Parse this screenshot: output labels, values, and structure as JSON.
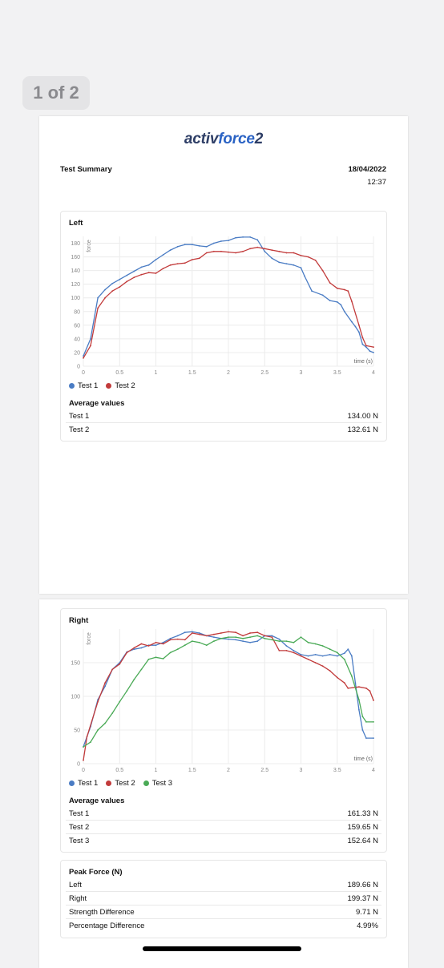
{
  "page_indicator": "1 of 2",
  "logo": {
    "part1": "activ",
    "part2": "force",
    "part3": "2"
  },
  "summary": {
    "title": "Test Summary",
    "date": "18/04/2022",
    "time": "12:37"
  },
  "left": {
    "title": "Left",
    "avg_title": "Average values",
    "averages": [
      {
        "label": "Test 1",
        "value": "134.00 N"
      },
      {
        "label": "Test 2",
        "value": "132.61 N"
      }
    ]
  },
  "right": {
    "title": "Right",
    "avg_title": "Average values",
    "averages": [
      {
        "label": "Test 1",
        "value": "161.33 N"
      },
      {
        "label": "Test 2",
        "value": "159.65 N"
      },
      {
        "label": "Test 3",
        "value": "152.64 N"
      }
    ]
  },
  "peak": {
    "title": "Peak Force (N)",
    "rows": [
      {
        "label": "Left",
        "value": "189.66 N"
      },
      {
        "label": "Right",
        "value": "199.37 N"
      },
      {
        "label": "Strength Difference",
        "value": "9.71 N"
      },
      {
        "label": "Percentage Difference",
        "value": "4.99%"
      }
    ]
  },
  "chart_data": [
    {
      "type": "line",
      "title": "Left",
      "xlabel": "time (s)",
      "ylabel": "force",
      "xlim": [
        0,
        4
      ],
      "ylim": [
        0,
        190
      ],
      "xticks": [
        0,
        0.5,
        1,
        1.5,
        2,
        2.5,
        3,
        3.5,
        4
      ],
      "xtick_labels": [
        "0",
        "0.5",
        "1",
        "1.5",
        "2",
        "2.5",
        "3",
        "3.5",
        "4"
      ],
      "yticks": [
        0,
        20,
        40,
        60,
        80,
        100,
        120,
        140,
        160,
        180
      ],
      "grid": true,
      "legend": "bottom-left",
      "series": [
        {
          "name": "Test 1",
          "color": "#4a7cc4",
          "points": [
            [
              0,
              15
            ],
            [
              0.1,
              40
            ],
            [
              0.2,
              100
            ],
            [
              0.3,
              112
            ],
            [
              0.4,
              121
            ],
            [
              0.5,
              127
            ],
            [
              0.6,
              133
            ],
            [
              0.7,
              139
            ],
            [
              0.8,
              145
            ],
            [
              0.9,
              148
            ],
            [
              1.0,
              156
            ],
            [
              1.1,
              163
            ],
            [
              1.2,
              170
            ],
            [
              1.3,
              175
            ],
            [
              1.4,
              178
            ],
            [
              1.5,
              178
            ],
            [
              1.6,
              176
            ],
            [
              1.7,
              175
            ],
            [
              1.8,
              180
            ],
            [
              1.9,
              183
            ],
            [
              2.0,
              184
            ],
            [
              2.1,
              188
            ],
            [
              2.2,
              189
            ],
            [
              2.3,
              189
            ],
            [
              2.4,
              185
            ],
            [
              2.5,
              168
            ],
            [
              2.6,
              158
            ],
            [
              2.7,
              152
            ],
            [
              2.8,
              150
            ],
            [
              2.9,
              148
            ],
            [
              3.0,
              144
            ],
            [
              3.05,
              132
            ],
            [
              3.15,
              110
            ],
            [
              3.3,
              104
            ],
            [
              3.4,
              96
            ],
            [
              3.5,
              94
            ],
            [
              3.55,
              90
            ],
            [
              3.6,
              80
            ],
            [
              3.7,
              65
            ],
            [
              3.75,
              58
            ],
            [
              3.8,
              50
            ],
            [
              3.85,
              32
            ],
            [
              3.9,
              28
            ],
            [
              3.95,
              22
            ],
            [
              4.0,
              20
            ]
          ]
        },
        {
          "name": "Test 2",
          "color": "#c23b3b",
          "points": [
            [
              0,
              12
            ],
            [
              0.1,
              30
            ],
            [
              0.2,
              85
            ],
            [
              0.3,
              100
            ],
            [
              0.4,
              110
            ],
            [
              0.5,
              116
            ],
            [
              0.6,
              124
            ],
            [
              0.7,
              130
            ],
            [
              0.8,
              134
            ],
            [
              0.9,
              137
            ],
            [
              1.0,
              136
            ],
            [
              1.1,
              143
            ],
            [
              1.2,
              148
            ],
            [
              1.3,
              150
            ],
            [
              1.4,
              151
            ],
            [
              1.5,
              156
            ],
            [
              1.6,
              158
            ],
            [
              1.7,
              166
            ],
            [
              1.8,
              168
            ],
            [
              1.9,
              168
            ],
            [
              2.0,
              167
            ],
            [
              2.1,
              166
            ],
            [
              2.2,
              168
            ],
            [
              2.3,
              172
            ],
            [
              2.4,
              174
            ],
            [
              2.5,
              172
            ],
            [
              2.6,
              170
            ],
            [
              2.7,
              168
            ],
            [
              2.8,
              166
            ],
            [
              2.9,
              166
            ],
            [
              3.0,
              162
            ],
            [
              3.1,
              160
            ],
            [
              3.2,
              155
            ],
            [
              3.3,
              140
            ],
            [
              3.4,
              122
            ],
            [
              3.5,
              114
            ],
            [
              3.6,
              112
            ],
            [
              3.65,
              110
            ],
            [
              3.7,
              95
            ],
            [
              3.8,
              60
            ],
            [
              3.85,
              42
            ],
            [
              3.9,
              30
            ],
            [
              4.0,
              28
            ]
          ]
        }
      ]
    },
    {
      "type": "line",
      "title": "Right",
      "xlabel": "time (s)",
      "ylabel": "force",
      "xlim": [
        0,
        4
      ],
      "ylim": [
        0,
        200
      ],
      "xticks": [
        0,
        0.5,
        1,
        1.5,
        2,
        2.5,
        3,
        3.5,
        4
      ],
      "xtick_labels": [
        "0",
        "0.5",
        "1",
        "1.5",
        "2",
        "2.5",
        "3",
        "3.5",
        "4"
      ],
      "yticks": [
        0,
        50,
        100,
        150
      ],
      "grid": true,
      "legend": "bottom-left",
      "series": [
        {
          "name": "Test 1",
          "color": "#4a7cc4",
          "points": [
            [
              0,
              25
            ],
            [
              0.1,
              55
            ],
            [
              0.2,
              95
            ],
            [
              0.3,
              115
            ],
            [
              0.4,
              140
            ],
            [
              0.5,
              150
            ],
            [
              0.6,
              166
            ],
            [
              0.7,
              170
            ],
            [
              0.8,
              172
            ],
            [
              0.9,
              176
            ],
            [
              1.0,
              176
            ],
            [
              1.1,
              180
            ],
            [
              1.2,
              186
            ],
            [
              1.3,
              190
            ],
            [
              1.4,
              195
            ],
            [
              1.5,
              196
            ],
            [
              1.6,
              194
            ],
            [
              1.7,
              190
            ],
            [
              1.8,
              188
            ],
            [
              1.9,
              186
            ],
            [
              2.0,
              185
            ],
            [
              2.1,
              184
            ],
            [
              2.2,
              182
            ],
            [
              2.3,
              180
            ],
            [
              2.4,
              182
            ],
            [
              2.5,
              190
            ],
            [
              2.6,
              190
            ],
            [
              2.7,
              185
            ],
            [
              2.8,
              175
            ],
            [
              2.9,
              168
            ],
            [
              3.0,
              162
            ],
            [
              3.1,
              160
            ],
            [
              3.2,
              162
            ],
            [
              3.3,
              160
            ],
            [
              3.4,
              162
            ],
            [
              3.5,
              160
            ],
            [
              3.6,
              164
            ],
            [
              3.65,
              170
            ],
            [
              3.7,
              160
            ],
            [
              3.75,
              120
            ],
            [
              3.8,
              80
            ],
            [
              3.85,
              50
            ],
            [
              3.9,
              38
            ],
            [
              4.0,
              38
            ]
          ]
        },
        {
          "name": "Test 2",
          "color": "#c23b3b",
          "points": [
            [
              0,
              5
            ],
            [
              0.05,
              40
            ],
            [
              0.2,
              92
            ],
            [
              0.3,
              120
            ],
            [
              0.4,
              140
            ],
            [
              0.5,
              148
            ],
            [
              0.6,
              165
            ],
            [
              0.7,
              172
            ],
            [
              0.8,
              178
            ],
            [
              0.9,
              175
            ],
            [
              1.0,
              180
            ],
            [
              1.1,
              178
            ],
            [
              1.2,
              184
            ],
            [
              1.3,
              185
            ],
            [
              1.4,
              184
            ],
            [
              1.5,
              194
            ],
            [
              1.6,
              192
            ],
            [
              1.7,
              190
            ],
            [
              1.8,
              192
            ],
            [
              1.9,
              194
            ],
            [
              2.0,
              196
            ],
            [
              2.1,
              195
            ],
            [
              2.2,
              190
            ],
            [
              2.3,
              194
            ],
            [
              2.4,
              195
            ],
            [
              2.5,
              190
            ],
            [
              2.6,
              188
            ],
            [
              2.7,
              168
            ],
            [
              2.8,
              168
            ],
            [
              2.9,
              165
            ],
            [
              3.0,
              160
            ],
            [
              3.1,
              155
            ],
            [
              3.2,
              150
            ],
            [
              3.3,
              145
            ],
            [
              3.4,
              138
            ],
            [
              3.5,
              128
            ],
            [
              3.6,
              120
            ],
            [
              3.65,
              112
            ],
            [
              3.8,
              114
            ],
            [
              3.9,
              112
            ],
            [
              3.95,
              108
            ],
            [
              4.0,
              94
            ]
          ]
        },
        {
          "name": "Test 3",
          "color": "#4aaa56",
          "points": [
            [
              0,
              25
            ],
            [
              0.1,
              32
            ],
            [
              0.2,
              50
            ],
            [
              0.3,
              60
            ],
            [
              0.4,
              75
            ],
            [
              0.5,
              92
            ],
            [
              0.6,
              108
            ],
            [
              0.7,
              125
            ],
            [
              0.8,
              140
            ],
            [
              0.9,
              155
            ],
            [
              1.0,
              158
            ],
            [
              1.1,
              156
            ],
            [
              1.2,
              165
            ],
            [
              1.3,
              170
            ],
            [
              1.4,
              176
            ],
            [
              1.5,
              182
            ],
            [
              1.6,
              180
            ],
            [
              1.7,
              176
            ],
            [
              1.8,
              182
            ],
            [
              1.9,
              186
            ],
            [
              2.0,
              188
            ],
            [
              2.1,
              188
            ],
            [
              2.2,
              186
            ],
            [
              2.3,
              188
            ],
            [
              2.4,
              190
            ],
            [
              2.5,
              186
            ],
            [
              2.6,
              184
            ],
            [
              2.7,
              182
            ],
            [
              2.8,
              182
            ],
            [
              2.9,
              180
            ],
            [
              3.0,
              188
            ],
            [
              3.1,
              180
            ],
            [
              3.2,
              178
            ],
            [
              3.3,
              175
            ],
            [
              3.4,
              170
            ],
            [
              3.5,
              165
            ],
            [
              3.6,
              155
            ],
            [
              3.7,
              130
            ],
            [
              3.8,
              95
            ],
            [
              3.85,
              70
            ],
            [
              3.9,
              62
            ],
            [
              4.0,
              62
            ]
          ]
        }
      ]
    }
  ]
}
